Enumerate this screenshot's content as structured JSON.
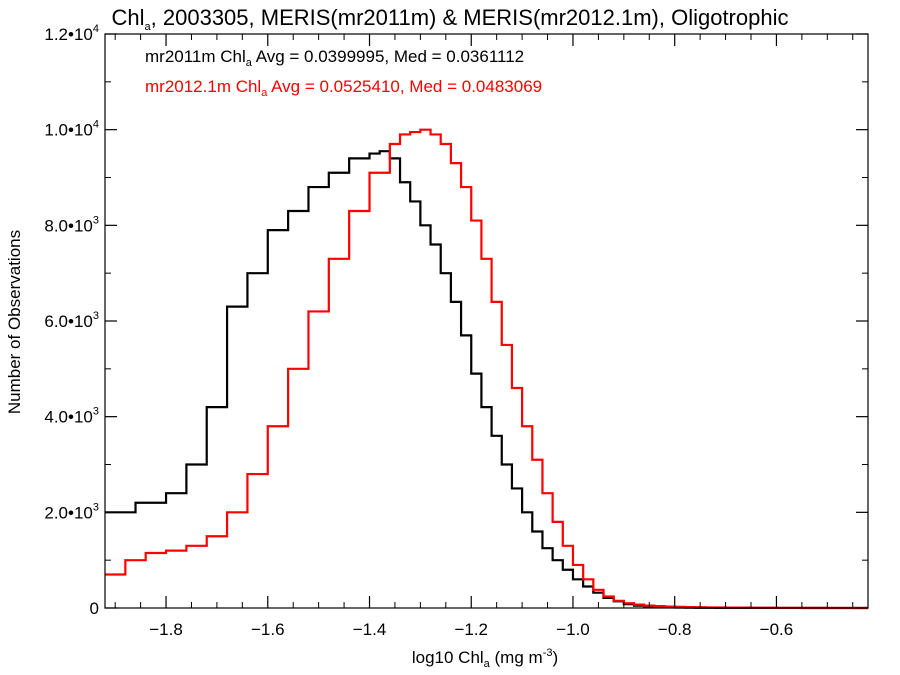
{
  "chart_data": {
    "type": "line",
    "title": {
      "lead": "Chl",
      "sub": "a",
      "rest": ", 2003305, MERIS(mr2011m) & MERIS(mr2012.1m), Oligotrophic"
    },
    "xlabel": {
      "lead": "log10 Chl",
      "sub": "a",
      "mid": " (mg m",
      "sup": "-3",
      "end": ")"
    },
    "ylabel": "Number of Observations",
    "xlim": [
      -1.92,
      -0.42
    ],
    "ylim": [
      0,
      12000
    ],
    "grid": false,
    "x_ticks": [
      {
        "value": -1.8,
        "label": "−1.8"
      },
      {
        "value": -1.6,
        "label": "−1.6"
      },
      {
        "value": -1.4,
        "label": "−1.4"
      },
      {
        "value": -1.2,
        "label": "−1.2"
      },
      {
        "value": -1.0,
        "label": "−1.0"
      },
      {
        "value": -0.8,
        "label": "−0.8"
      },
      {
        "value": -0.6,
        "label": "−0.6"
      }
    ],
    "y_ticks": [
      {
        "value": 0,
        "base": "0",
        "exp": ""
      },
      {
        "value": 2000,
        "base": "2.0•10",
        "exp": "3"
      },
      {
        "value": 4000,
        "base": "4.0•10",
        "exp": "3"
      },
      {
        "value": 6000,
        "base": "6.0•10",
        "exp": "3"
      },
      {
        "value": 8000,
        "base": "8.0•10",
        "exp": "3"
      },
      {
        "value": 10000,
        "base": "1.0•10",
        "exp": "4"
      },
      {
        "value": 12000,
        "base": "1.2•10",
        "exp": "4"
      }
    ],
    "stats": [
      {
        "lead": "mr2011m Chl",
        "sub": "a",
        "rest": " Avg = 0.0399995, Med = 0.0361112",
        "color": "#000000"
      },
      {
        "lead": "mr2012.1m Chl",
        "sub": "a",
        "rest": " Avg = 0.0525410, Med = 0.0483069",
        "color": "#ff0000"
      }
    ],
    "series": [
      {
        "color": "#000000",
        "x": [
          -1.92,
          -1.86,
          -1.8,
          -1.76,
          -1.72,
          -1.68,
          -1.64,
          -1.6,
          -1.56,
          -1.52,
          -1.48,
          -1.44,
          -1.4,
          -1.38,
          -1.36,
          -1.34,
          -1.32,
          -1.3,
          -1.28,
          -1.26,
          -1.24,
          -1.22,
          -1.2,
          -1.18,
          -1.16,
          -1.14,
          -1.12,
          -1.1,
          -1.08,
          -1.06,
          -1.04,
          -1.02,
          -1.0,
          -0.98,
          -0.96,
          -0.94,
          -0.92,
          -0.9,
          -0.88,
          -0.86,
          -0.84,
          -0.82,
          -0.8,
          -0.78,
          -0.76,
          -0.74,
          -0.72,
          -0.7,
          -0.65,
          -0.6,
          -0.55,
          -0.5,
          -0.45,
          -0.42
        ],
        "y": [
          2000,
          2200,
          2400,
          3000,
          4200,
          6300,
          7000,
          7900,
          8300,
          8800,
          9100,
          9400,
          9500,
          9550,
          9400,
          8900,
          8500,
          8000,
          7600,
          7000,
          6400,
          5700,
          4900,
          4200,
          3600,
          3000,
          2500,
          2000,
          1600,
          1250,
          1000,
          800,
          600,
          450,
          320,
          210,
          140,
          80,
          50,
          30,
          20,
          15,
          10,
          8,
          5,
          4,
          3,
          2,
          1,
          1,
          0,
          0,
          0,
          0
        ]
      },
      {
        "color": "#ff0000",
        "x": [
          -1.92,
          -1.88,
          -1.84,
          -1.8,
          -1.76,
          -1.72,
          -1.68,
          -1.64,
          -1.6,
          -1.56,
          -1.52,
          -1.48,
          -1.44,
          -1.4,
          -1.36,
          -1.34,
          -1.32,
          -1.3,
          -1.28,
          -1.26,
          -1.24,
          -1.22,
          -1.2,
          -1.18,
          -1.16,
          -1.14,
          -1.12,
          -1.1,
          -1.08,
          -1.06,
          -1.04,
          -1.02,
          -1.0,
          -0.98,
          -0.96,
          -0.94,
          -0.92,
          -0.9,
          -0.88,
          -0.86,
          -0.84,
          -0.82,
          -0.8,
          -0.78,
          -0.76,
          -0.74,
          -0.72,
          -0.7,
          -0.65,
          -0.6,
          -0.55,
          -0.5,
          -0.45,
          -0.42
        ],
        "y": [
          700,
          1000,
          1150,
          1200,
          1300,
          1500,
          2000,
          2800,
          3800,
          5000,
          6200,
          7300,
          8300,
          9100,
          9700,
          9900,
          9950,
          10000,
          9900,
          9700,
          9300,
          8800,
          8100,
          7300,
          6400,
          5500,
          4600,
          3800,
          3100,
          2400,
          1800,
          1300,
          900,
          600,
          380,
          240,
          150,
          100,
          70,
          50,
          40,
          30,
          25,
          20,
          15,
          12,
          10,
          8,
          5,
          3,
          2,
          1,
          0,
          0
        ]
      }
    ]
  }
}
